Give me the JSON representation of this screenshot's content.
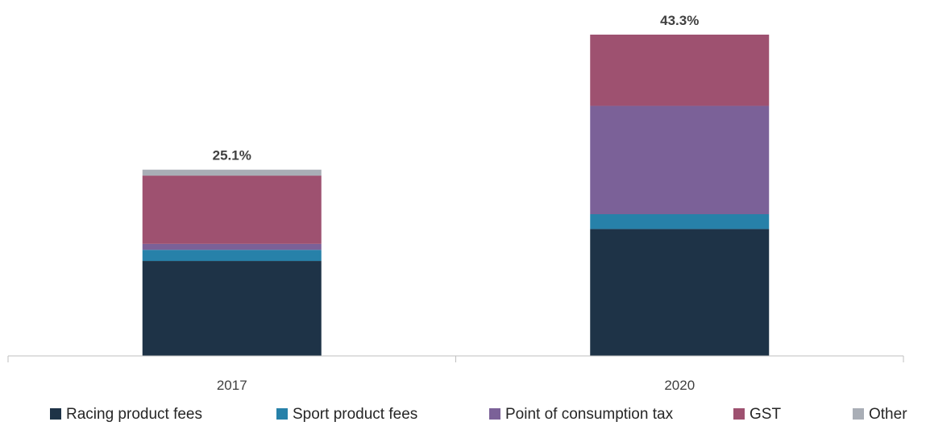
{
  "chart_data": {
    "type": "bar",
    "stacked": true,
    "categories": [
      "2017",
      "2020"
    ],
    "totals_labels": [
      "25.1%",
      "43.3%"
    ],
    "totals": [
      25.1,
      43.3
    ],
    "series": [
      {
        "name": "Racing product fees",
        "color": "#1e3347",
        "values": [
          12.8,
          17.1
        ]
      },
      {
        "name": "Sport product fees",
        "color": "#2781a9",
        "values": [
          1.5,
          2.0
        ]
      },
      {
        "name": "Point of consumption tax",
        "color": "#7b6198",
        "values": [
          0.8,
          14.6
        ]
      },
      {
        "name": "GST",
        "color": "#9e5170",
        "values": [
          9.2,
          9.6
        ]
      },
      {
        "name": "Other",
        "color": "#a9aeb6",
        "values": [
          0.8,
          0.0
        ]
      }
    ],
    "ylim": [
      0,
      43.3
    ],
    "grid": false,
    "legend": "bottom"
  }
}
